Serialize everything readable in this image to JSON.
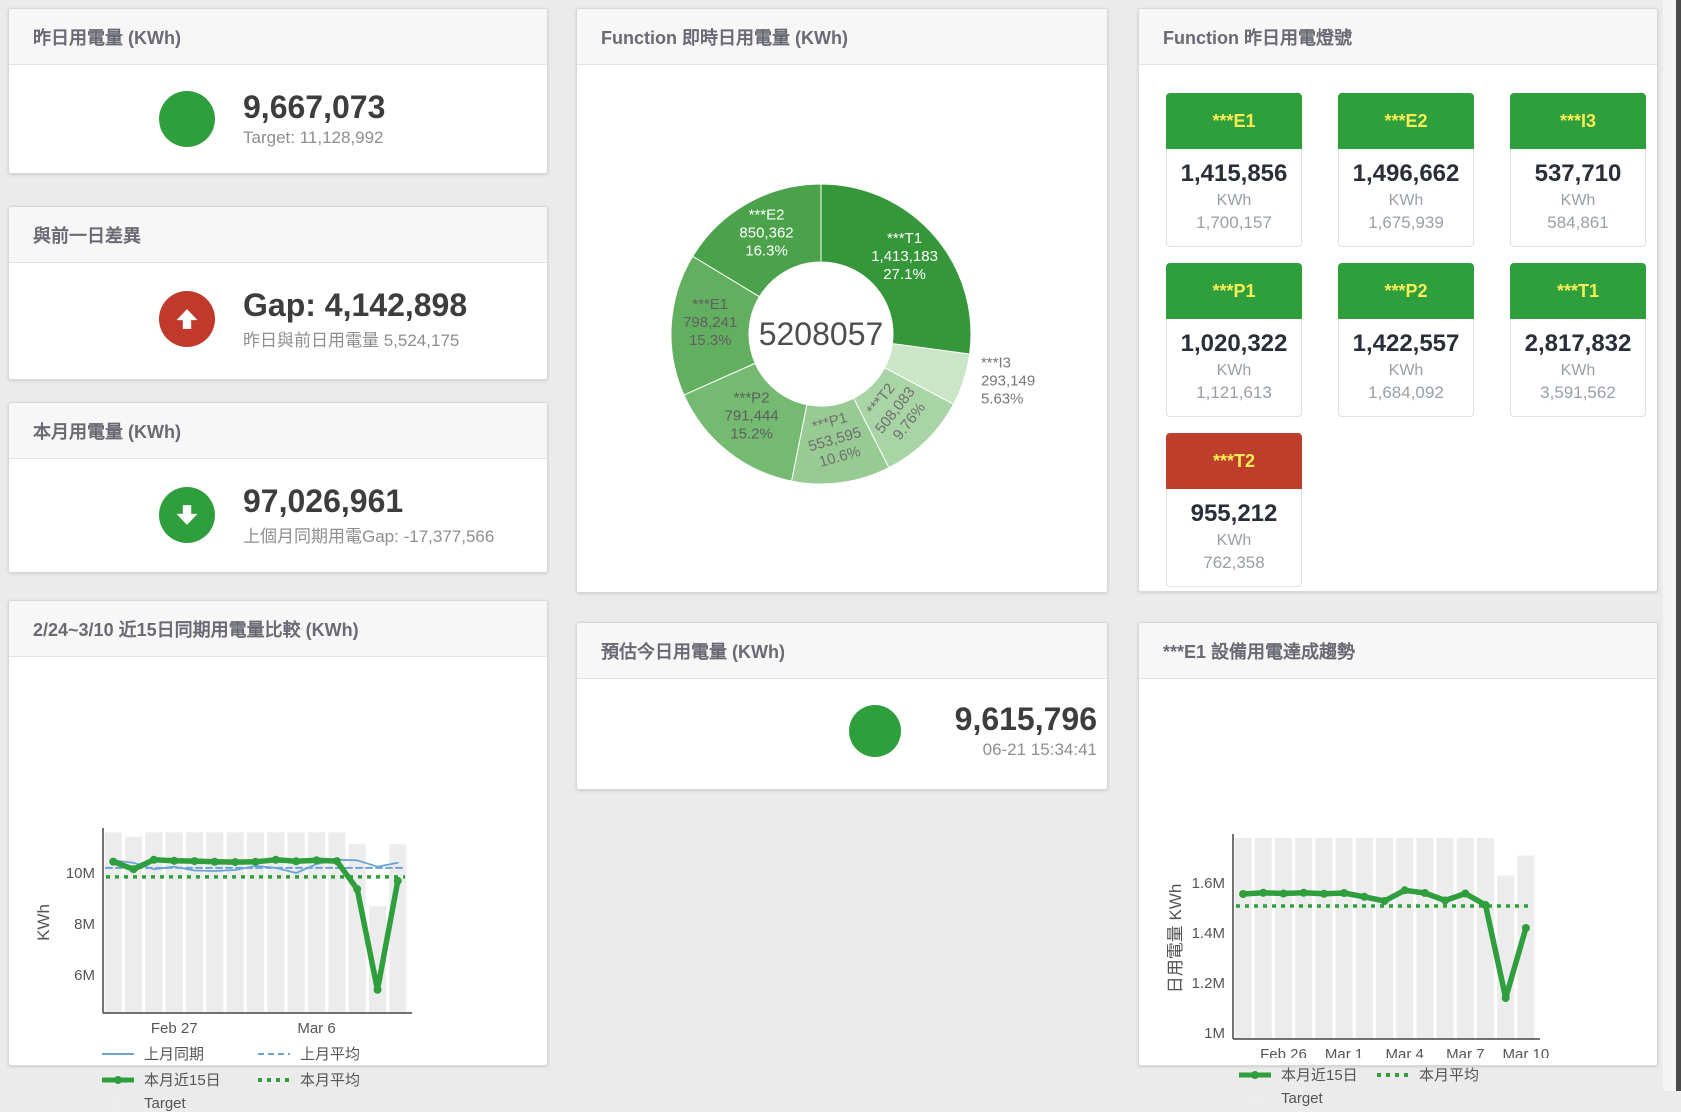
{
  "colors": {
    "green": "#2f9e3c",
    "red": "#c0392b",
    "blue": "#6ba3d6",
    "bar_gray": "#ececec",
    "tile_label_yellow": "#f9ed55"
  },
  "cards": {
    "yesterday": {
      "title": "昨日用電量 (KWh)",
      "value": "9,667,073",
      "subtitle": "Target: 11,128,992",
      "indicator": "circle",
      "indicator_color": "#2f9e3c"
    },
    "day_gap": {
      "title": "與前一日差異",
      "value": "Gap: 4,142,898",
      "subtitle": "昨日與前日用電量 5,524,175",
      "indicator": "arrow-up",
      "indicator_color": "#c0392b"
    },
    "month": {
      "title": "本月用電量 (KWh)",
      "value": "97,026,961",
      "subtitle": "上個月同期用電Gap: -17,377,566",
      "indicator": "arrow-down",
      "indicator_color": "#2f9e3c"
    },
    "estimate": {
      "title": "預估今日用電量 (KWh)",
      "value": "9,615,796",
      "subtitle": "06-21 15:34:41",
      "indicator": "circle",
      "indicator_color": "#2f9e3c"
    }
  },
  "lights": {
    "title": "Function 昨日用電燈號",
    "unit": "KWh",
    "status_colors": {
      "green": "#2f9e3c",
      "red": "#bd3e2a"
    },
    "label_color": "#f9ed55",
    "tiles": [
      {
        "label": "***E1",
        "value": "1,415,856",
        "target": "1,700,157",
        "status": "green"
      },
      {
        "label": "***E2",
        "value": "1,496,662",
        "target": "1,675,939",
        "status": "green"
      },
      {
        "label": "***I3",
        "value": "537,710",
        "target": "584,861",
        "status": "green"
      },
      {
        "label": "***P1",
        "value": "1,020,322",
        "target": "1,121,613",
        "status": "green"
      },
      {
        "label": "***P2",
        "value": "1,422,557",
        "target": "1,684,092",
        "status": "green"
      },
      {
        "label": "***T1",
        "value": "2,817,832",
        "target": "3,591,562",
        "status": "green"
      },
      {
        "label": "***T2",
        "value": "955,212",
        "target": "762,358",
        "status": "red"
      }
    ]
  },
  "legend_styles": {
    "上月同期": {
      "type": "line",
      "color": "#6ba3d6",
      "key": "last-month-same-period"
    },
    "上月平均": {
      "type": "dashed",
      "color": "#6ba3d6",
      "key": "last-month-average"
    },
    "本月近15日": {
      "type": "thick",
      "color": "#2f9e3c",
      "key": "this-month-15days"
    },
    "本月平均": {
      "type": "dotted",
      "color": "#2f9e3c",
      "key": "this-month-average"
    },
    "Target": {
      "type": "box",
      "color": "#ececec",
      "key": "target"
    }
  },
  "chart_data": [
    {
      "id": "donut",
      "type": "pie",
      "title": "Function 即時日用電量 (KWh)",
      "center_total": "5208057",
      "slices": [
        {
          "name": "***T1",
          "value": 1413183,
          "label": "1,413,183",
          "pct": "27.1%",
          "color": "#35973a",
          "text": "#ffffff"
        },
        {
          "name": "***I3",
          "value": 293149,
          "label": "293,149",
          "pct": "5.63%",
          "color": "#cbe6c7",
          "text": "#777777",
          "outside": true
        },
        {
          "name": "***T2",
          "value": 508083,
          "label": "508,083",
          "pct": "9.76%",
          "color": "#a9d4a5",
          "text": "#6f6f6f",
          "rotate": -52
        },
        {
          "name": "***P1",
          "value": 553595,
          "label": "553,595",
          "pct": "10.6%",
          "color": "#97cb93",
          "text": "#6f6f6f",
          "rotate": -16
        },
        {
          "name": "***P2",
          "value": 791444,
          "label": "791,444",
          "pct": "15.2%",
          "color": "#74ba71",
          "text": "#5f5f5f"
        },
        {
          "name": "***E1",
          "value": 798241,
          "label": "798,241",
          "pct": "15.3%",
          "color": "#63af60",
          "text": "#5f5f5f"
        },
        {
          "name": "***E2",
          "value": 850362,
          "label": "850,362",
          "pct": "16.3%",
          "color": "#4ba24b",
          "text": "#ffffff"
        }
      ]
    },
    {
      "id": "compare",
      "type": "line+bar",
      "title": "2/24~3/10 近15日同期用電量比較 (KWh)",
      "ylabel": "KWh",
      "ylim": [
        4510000,
        11610000
      ],
      "yticks": [
        {
          "v": 6000000,
          "label": "6M"
        },
        {
          "v": 8000000,
          "label": "8M"
        },
        {
          "v": 10000000,
          "label": "10M"
        }
      ],
      "xticks": [
        {
          "i": 3,
          "label": "Feb 27"
        },
        {
          "i": 10,
          "label": "Mar 6"
        }
      ],
      "bars": {
        "name": "Target",
        "color": "#ececec",
        "values": [
          11600000,
          11420000,
          11600000,
          11600000,
          11600000,
          11600000,
          11600000,
          11600000,
          11600000,
          11600000,
          11600000,
          11600000,
          11130000,
          8700000,
          11130000
        ]
      },
      "series": [
        {
          "name": "上月同期",
          "color": "#6ba3d6",
          "width": 1.8,
          "dash": "none",
          "values": [
            10500000,
            10400000,
            10150000,
            10250000,
            10100000,
            10080000,
            10120000,
            10280000,
            10200000,
            10000000,
            10350000,
            10520000,
            10500000,
            10250000,
            10400000
          ]
        },
        {
          "name": "上月平均",
          "color": "#6ba3d6",
          "width": 2,
          "dash": "dashed",
          "const": 10200000
        },
        {
          "name": "本月近15日",
          "color": "#2f9e3c",
          "width": 5.5,
          "dash": "none",
          "markers": true,
          "values": [
            10450000,
            10150000,
            10520000,
            10480000,
            10470000,
            10440000,
            10430000,
            10440000,
            10520000,
            10460000,
            10500000,
            10470000,
            9370000,
            5420000,
            9690000
          ]
        },
        {
          "name": "本月平均",
          "color": "#2f9e3c",
          "width": 3.5,
          "dash": "dotted",
          "const": 9850000
        }
      ],
      "legend_rows": [
        [
          "上月同期",
          "上月平均"
        ],
        [
          "本月近15日",
          "本月平均"
        ],
        [
          "Target"
        ]
      ]
    },
    {
      "id": "trend",
      "type": "line+bar",
      "title": "***E1 設備用電達成趨勢",
      "ylabel": "日用電量 KWh",
      "ylim": [
        976000,
        1780000
      ],
      "yticks": [
        {
          "v": 1000000,
          "label": "1M"
        },
        {
          "v": 1200000,
          "label": "1.2M"
        },
        {
          "v": 1400000,
          "label": "1.4M"
        },
        {
          "v": 1600000,
          "label": "1.6M"
        }
      ],
      "xticks": [
        {
          "i": 2,
          "label": "Feb 26"
        },
        {
          "i": 5,
          "label": "Mar 1"
        },
        {
          "i": 8,
          "label": "Mar 4"
        },
        {
          "i": 11,
          "label": "Mar 7"
        },
        {
          "i": 14,
          "label": "Mar 10"
        }
      ],
      "bars": {
        "name": "Target",
        "color": "#ececec",
        "values": [
          1780000,
          1780000,
          1780000,
          1780000,
          1780000,
          1780000,
          1780000,
          1780000,
          1780000,
          1780000,
          1780000,
          1780000,
          1780000,
          1630000,
          1710000
        ]
      },
      "series": [
        {
          "name": "本月近15日",
          "color": "#2f9e3c",
          "width": 5.5,
          "dash": "none",
          "markers": true,
          "values": [
            1556000,
            1561000,
            1558000,
            1561000,
            1557000,
            1560000,
            1545000,
            1528000,
            1571000,
            1560000,
            1530000,
            1558000,
            1512000,
            1140000,
            1420000
          ]
        },
        {
          "name": "本月平均",
          "color": "#2f9e3c",
          "width": 3.5,
          "dash": "dotted",
          "const": 1508000
        }
      ],
      "legend_rows": [
        [
          "本月近15日",
          "本月平均"
        ],
        [
          "Target"
        ]
      ]
    }
  ]
}
